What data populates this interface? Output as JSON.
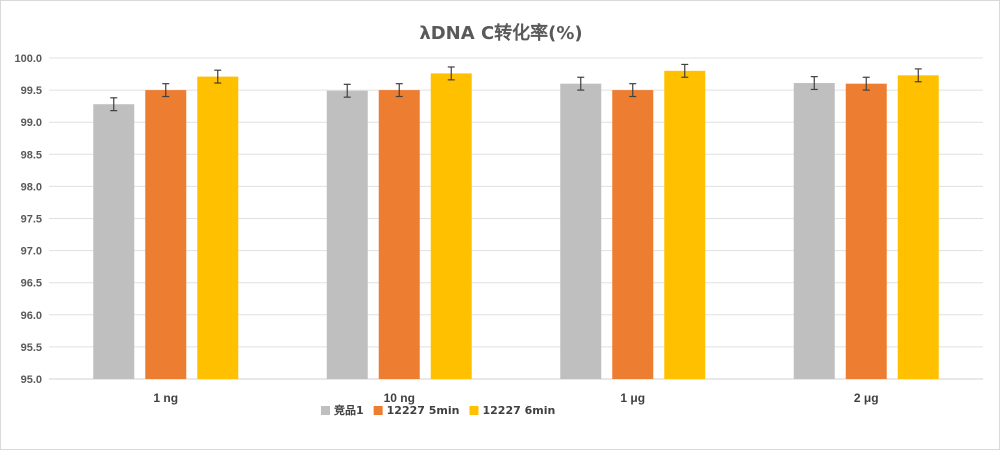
{
  "chart_data": {
    "type": "bar",
    "title": "λDNA C转化率(%)",
    "xlabel": "",
    "ylabel": "",
    "ylim": [
      95.0,
      100.0
    ],
    "yticks": [
      "95.0",
      "95.5",
      "96.0",
      "96.5",
      "97.0",
      "97.5",
      "98.0",
      "98.5",
      "99.0",
      "99.5",
      "100.0"
    ],
    "categories": [
      "1 ng",
      "10 ng",
      "1 μg",
      "2 μg"
    ],
    "series": [
      {
        "name": "竞品1",
        "color": "#bfbfbf",
        "values": [
          99.28,
          99.49,
          99.6,
          99.61
        ],
        "errors": [
          0.1,
          0.1,
          0.1,
          0.1
        ]
      },
      {
        "name": "12227 5min",
        "color": "#ed7d31",
        "values": [
          99.5,
          99.5,
          99.5,
          99.6
        ],
        "errors": [
          0.1,
          0.1,
          0.1,
          0.1
        ]
      },
      {
        "name": "12227 6min",
        "color": "#ffc000",
        "values": [
          99.71,
          99.76,
          99.8,
          99.73
        ],
        "errors": [
          0.1,
          0.1,
          0.1,
          0.1
        ]
      }
    ],
    "grid": true,
    "legend_position": "bottom"
  }
}
